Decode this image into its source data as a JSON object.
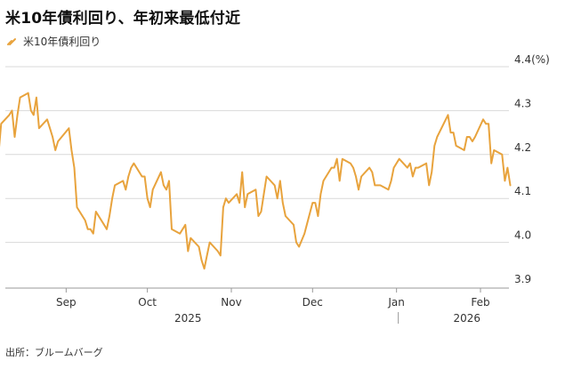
{
  "title": "米10年債利回り、年初来最低付近",
  "source": "出所：ブルームバーグ",
  "colors": {
    "line": "#e8a33d",
    "grid": "#d9d9d9",
    "axis": "#999999"
  },
  "chart_data": {
    "type": "line",
    "title": "米10年債利回り、年初来最低付近",
    "ylabel": "",
    "yunit": "(%)",
    "ylim": [
      3.9,
      4.4
    ],
    "yticks": [
      3.9,
      4.0,
      4.1,
      4.2,
      4.3,
      4.4
    ],
    "ytick_labels": [
      "3.9",
      "4.0",
      "4.1",
      "4.2",
      "4.3",
      "4.4(%)"
    ],
    "grid": true,
    "legend_position": "top-left",
    "x_month_labels": [
      "Sep",
      "Oct",
      "Nov",
      "Dec",
      "Jan",
      "Feb"
    ],
    "x_month_dates": [
      "2025-09-01",
      "2025-10-01",
      "2025-11-01",
      "2025-12-01",
      "2026-01-01",
      "2026-02-01"
    ],
    "x_year_labels": [
      {
        "label": "2025",
        "date": "2025-10-16"
      },
      {
        "label": "2026",
        "date": "2026-01-27"
      }
    ],
    "year_divider_date": "2026-01-01",
    "series": [
      {
        "name": "米10年債利回り",
        "points": [
          [
            "2025-08-06",
            4.24
          ],
          [
            "2025-08-07",
            4.2
          ],
          [
            "2025-08-08",
            4.27
          ],
          [
            "2025-08-11",
            4.29
          ],
          [
            "2025-08-12",
            4.3
          ],
          [
            "2025-08-13",
            4.24
          ],
          [
            "2025-08-14",
            4.29
          ],
          [
            "2025-08-15",
            4.33
          ],
          [
            "2025-08-18",
            4.34
          ],
          [
            "2025-08-19",
            4.3
          ],
          [
            "2025-08-20",
            4.29
          ],
          [
            "2025-08-21",
            4.33
          ],
          [
            "2025-08-22",
            4.26
          ],
          [
            "2025-08-25",
            4.28
          ],
          [
            "2025-08-26",
            4.26
          ],
          [
            "2025-08-27",
            4.24
          ],
          [
            "2025-08-28",
            4.21
          ],
          [
            "2025-08-29",
            4.23
          ],
          [
            "2025-09-02",
            4.26
          ],
          [
            "2025-09-03",
            4.21
          ],
          [
            "2025-09-04",
            4.17
          ],
          [
            "2025-09-05",
            4.08
          ],
          [
            "2025-09-08",
            4.05
          ],
          [
            "2025-09-09",
            4.03
          ],
          [
            "2025-09-10",
            4.03
          ],
          [
            "2025-09-11",
            4.02
          ],
          [
            "2025-09-12",
            4.07
          ],
          [
            "2025-09-15",
            4.04
          ],
          [
            "2025-09-16",
            4.03
          ],
          [
            "2025-09-17",
            4.06
          ],
          [
            "2025-09-18",
            4.1
          ],
          [
            "2025-09-19",
            4.13
          ],
          [
            "2025-09-22",
            4.14
          ],
          [
            "2025-09-23",
            4.12
          ],
          [
            "2025-09-24",
            4.15
          ],
          [
            "2025-09-25",
            4.17
          ],
          [
            "2025-09-26",
            4.18
          ],
          [
            "2025-09-29",
            4.15
          ],
          [
            "2025-09-30",
            4.15
          ],
          [
            "2025-10-01",
            4.1
          ],
          [
            "2025-10-02",
            4.08
          ],
          [
            "2025-10-03",
            4.12
          ],
          [
            "2025-10-06",
            4.16
          ],
          [
            "2025-10-07",
            4.13
          ],
          [
            "2025-10-08",
            4.12
          ],
          [
            "2025-10-09",
            4.14
          ],
          [
            "2025-10-10",
            4.03
          ],
          [
            "2025-10-13",
            4.02
          ],
          [
            "2025-10-14",
            4.03
          ],
          [
            "2025-10-15",
            4.04
          ],
          [
            "2025-10-16",
            3.98
          ],
          [
            "2025-10-17",
            4.01
          ],
          [
            "2025-10-20",
            3.99
          ],
          [
            "2025-10-21",
            3.96
          ],
          [
            "2025-10-22",
            3.94
          ],
          [
            "2025-10-23",
            3.97
          ],
          [
            "2025-10-24",
            4.0
          ],
          [
            "2025-10-27",
            3.98
          ],
          [
            "2025-10-28",
            3.97
          ],
          [
            "2025-10-29",
            4.08
          ],
          [
            "2025-10-30",
            4.1
          ],
          [
            "2025-10-31",
            4.09
          ],
          [
            "2025-11-03",
            4.11
          ],
          [
            "2025-11-04",
            4.09
          ],
          [
            "2025-11-05",
            4.16
          ],
          [
            "2025-11-06",
            4.08
          ],
          [
            "2025-11-07",
            4.11
          ],
          [
            "2025-11-10",
            4.12
          ],
          [
            "2025-11-11",
            4.06
          ],
          [
            "2025-11-12",
            4.07
          ],
          [
            "2025-11-13",
            4.11
          ],
          [
            "2025-11-14",
            4.15
          ],
          [
            "2025-11-17",
            4.13
          ],
          [
            "2025-11-18",
            4.1
          ],
          [
            "2025-11-19",
            4.14
          ],
          [
            "2025-11-20",
            4.09
          ],
          [
            "2025-11-21",
            4.06
          ],
          [
            "2025-11-24",
            4.04
          ],
          [
            "2025-11-25",
            4.0
          ],
          [
            "2025-11-26",
            3.99
          ],
          [
            "2025-11-28",
            4.02
          ],
          [
            "2025-12-01",
            4.09
          ],
          [
            "2025-12-02",
            4.09
          ],
          [
            "2025-12-03",
            4.06
          ],
          [
            "2025-12-04",
            4.11
          ],
          [
            "2025-12-05",
            4.14
          ],
          [
            "2025-12-08",
            4.17
          ],
          [
            "2025-12-09",
            4.17
          ],
          [
            "2025-12-10",
            4.19
          ],
          [
            "2025-12-11",
            4.14
          ],
          [
            "2025-12-12",
            4.19
          ],
          [
            "2025-12-15",
            4.18
          ],
          [
            "2025-12-16",
            4.17
          ],
          [
            "2025-12-17",
            4.15
          ],
          [
            "2025-12-18",
            4.12
          ],
          [
            "2025-12-19",
            4.15
          ],
          [
            "2025-12-22",
            4.17
          ],
          [
            "2025-12-23",
            4.16
          ],
          [
            "2025-12-24",
            4.13
          ],
          [
            "2025-12-26",
            4.13
          ],
          [
            "2025-12-29",
            4.12
          ],
          [
            "2025-12-30",
            4.14
          ],
          [
            "2025-12-31",
            4.17
          ],
          [
            "2026-01-02",
            4.19
          ],
          [
            "2026-01-05",
            4.17
          ],
          [
            "2026-01-06",
            4.18
          ],
          [
            "2026-01-07",
            4.15
          ],
          [
            "2026-01-08",
            4.17
          ],
          [
            "2026-01-09",
            4.17
          ],
          [
            "2026-01-12",
            4.18
          ],
          [
            "2026-01-13",
            4.13
          ],
          [
            "2026-01-14",
            4.16
          ],
          [
            "2026-01-15",
            4.22
          ],
          [
            "2026-01-16",
            4.24
          ],
          [
            "2026-01-20",
            4.29
          ],
          [
            "2026-01-21",
            4.25
          ],
          [
            "2026-01-22",
            4.25
          ],
          [
            "2026-01-23",
            4.22
          ],
          [
            "2026-01-26",
            4.21
          ],
          [
            "2026-01-27",
            4.24
          ],
          [
            "2026-01-28",
            4.24
          ],
          [
            "2026-01-29",
            4.23
          ],
          [
            "2026-01-30",
            4.24
          ],
          [
            "2026-02-02",
            4.28
          ],
          [
            "2026-02-03",
            4.27
          ],
          [
            "2026-02-04",
            4.27
          ],
          [
            "2026-02-05",
            4.18
          ],
          [
            "2026-02-06",
            4.21
          ],
          [
            "2026-02-09",
            4.2
          ],
          [
            "2026-02-10",
            4.14
          ],
          [
            "2026-02-11",
            4.17
          ],
          [
            "2026-02-12",
            4.13
          ]
        ]
      }
    ]
  }
}
